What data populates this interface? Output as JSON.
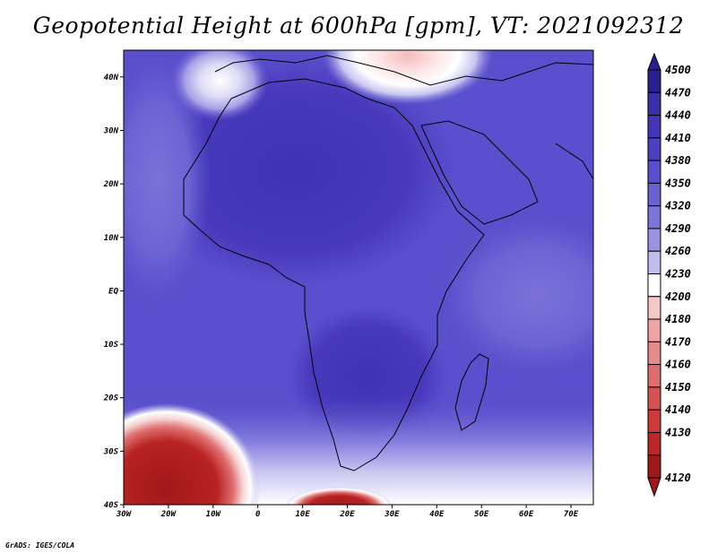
{
  "title": "Geopotential Height at 600hPa [gpm], VT: 2021092312",
  "footer": "GrADS: IGES/COLA",
  "map": {
    "lat_ticks": [
      "40N",
      "30N",
      "20N",
      "10N",
      "EQ",
      "10S",
      "20S",
      "30S",
      "40S"
    ],
    "lon_ticks": [
      "30W",
      "20W",
      "10W",
      "0",
      "10E",
      "20E",
      "30E",
      "40E",
      "50E",
      "60E",
      "70E"
    ],
    "lon_range": [
      -30,
      75
    ],
    "lat_range": [
      -40,
      45
    ]
  },
  "colorbar": {
    "levels": [
      "4500",
      "4470",
      "4440",
      "4410",
      "4380",
      "4350",
      "4320",
      "4290",
      "4260",
      "4230",
      "4200",
      "4180",
      "4170",
      "4160",
      "4150",
      "4140",
      "4130",
      "4120"
    ],
    "colors": [
      "#2a1f8f",
      "#3a2fa8",
      "#4334b8",
      "#4c40c2",
      "#5a4fcc",
      "#6a60d2",
      "#7c74d9",
      "#9993e2",
      "#bfbcee",
      "#ffffff",
      "#f5c8c8",
      "#eea4a4",
      "#e68a8a",
      "#de6e6e",
      "#d65252",
      "#cc3a3a",
      "#bb2626",
      "#a01818"
    ]
  }
}
